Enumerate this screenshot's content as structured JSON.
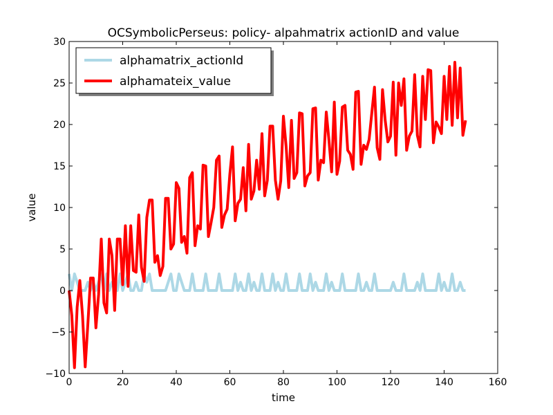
{
  "chart_data": {
    "type": "line",
    "title": "OCSymbolicPerseus: policy- alpahmatrix actionID and value",
    "xlabel": "time",
    "ylabel": "value",
    "xlim": [
      0,
      160
    ],
    "ylim": [
      -10,
      30
    ],
    "xticks": [
      0,
      20,
      40,
      60,
      80,
      100,
      120,
      140,
      160
    ],
    "yticks": [
      -10,
      -5,
      0,
      5,
      10,
      15,
      20,
      25,
      30
    ],
    "xtick_labels": [
      "0",
      "20",
      "40",
      "60",
      "80",
      "100",
      "120",
      "140",
      "160"
    ],
    "ytick_labels": [
      "−10",
      "−5",
      "0",
      "5",
      "10",
      "15",
      "20",
      "25",
      "30"
    ],
    "grid": false,
    "legend_position": "top-left",
    "series": [
      {
        "name": "alphamatrix_actionId",
        "color": "#add8e6",
        "x": [
          0,
          1,
          2,
          3,
          4,
          5,
          6,
          7,
          8,
          9,
          10,
          11,
          12,
          13,
          14,
          15,
          16,
          17,
          18,
          19,
          20,
          21,
          22,
          23,
          24,
          25,
          26,
          27,
          28,
          29,
          30,
          31,
          32,
          33,
          34,
          35,
          36,
          37,
          38,
          39,
          40,
          41,
          42,
          43,
          44,
          45,
          46,
          47,
          48,
          49,
          50,
          51,
          52,
          53,
          54,
          55,
          56,
          57,
          58,
          59,
          60,
          61,
          62,
          63,
          64,
          65,
          66,
          67,
          68,
          69,
          70,
          71,
          72,
          73,
          74,
          75,
          76,
          77,
          78,
          79,
          80,
          81,
          82,
          83,
          84,
          85,
          86,
          87,
          88,
          89,
          90,
          91,
          92,
          93,
          94,
          95,
          96,
          97,
          98,
          99,
          100,
          101,
          102,
          103,
          104,
          105,
          106,
          107,
          108,
          109,
          110,
          111,
          112,
          113,
          114,
          115,
          116,
          117,
          118,
          119,
          120,
          121,
          122,
          123,
          124,
          125,
          126,
          127,
          128,
          129,
          130,
          131,
          132,
          133,
          134,
          135,
          136,
          137,
          138,
          139,
          140,
          141,
          142,
          143,
          144,
          145,
          146,
          147,
          148
        ],
        "values": [
          2,
          0,
          2,
          1,
          0,
          0,
          0,
          1,
          0,
          1,
          0,
          1,
          2,
          0,
          2,
          0,
          1,
          0,
          0,
          2,
          0,
          1,
          2,
          0,
          0,
          1,
          0,
          0,
          2,
          1,
          2,
          0,
          0,
          0,
          0,
          0,
          0,
          1,
          2,
          0,
          0,
          2,
          1,
          0,
          0,
          0,
          2,
          0,
          0,
          0,
          0,
          2,
          0,
          0,
          0,
          0,
          2,
          0,
          0,
          0,
          0,
          0,
          2,
          0,
          1,
          0,
          0,
          2,
          0,
          1,
          0,
          0,
          2,
          0,
          0,
          0,
          2,
          0,
          1,
          0,
          0,
          2,
          0,
          0,
          0,
          0,
          2,
          0,
          0,
          0,
          2,
          0,
          1,
          0,
          0,
          0,
          2,
          0,
          1,
          0,
          0,
          0,
          2,
          0,
          0,
          0,
          0,
          0,
          2,
          0,
          0,
          1,
          0,
          0,
          2,
          0,
          0,
          0,
          0,
          0,
          0,
          1,
          0,
          0,
          0,
          2,
          0,
          0,
          0,
          0,
          1,
          0,
          2,
          0,
          0,
          0,
          0,
          0,
          2,
          0,
          1,
          0,
          0,
          2,
          0,
          0,
          1,
          0,
          0
        ]
      },
      {
        "name": "alphamateix_value",
        "color": "#ff0000",
        "x": [
          0,
          1,
          2,
          3,
          4,
          5,
          6,
          7,
          8,
          9,
          10,
          11,
          12,
          13,
          14,
          15,
          16,
          17,
          18,
          19,
          20,
          21,
          22,
          23,
          24,
          25,
          26,
          27,
          28,
          29,
          30,
          31,
          32,
          33,
          34,
          35,
          36,
          37,
          38,
          39,
          40,
          41,
          42,
          43,
          44,
          45,
          46,
          47,
          48,
          49,
          50,
          51,
          52,
          53,
          54,
          55,
          56,
          57,
          58,
          59,
          60,
          61,
          62,
          63,
          64,
          65,
          66,
          67,
          68,
          69,
          70,
          71,
          72,
          73,
          74,
          75,
          76,
          77,
          78,
          79,
          80,
          81,
          82,
          83,
          84,
          85,
          86,
          87,
          88,
          89,
          90,
          91,
          92,
          93,
          94,
          95,
          96,
          97,
          98,
          99,
          100,
          101,
          102,
          103,
          104,
          105,
          106,
          107,
          108,
          109,
          110,
          111,
          112,
          113,
          114,
          115,
          116,
          117,
          118,
          119,
          120,
          121,
          122,
          123,
          124,
          125,
          126,
          127,
          128,
          129,
          130,
          131,
          132,
          133,
          134,
          135,
          136,
          137,
          138,
          139,
          140,
          141,
          142,
          143,
          144,
          145,
          146,
          147,
          148
        ],
        "values": [
          0,
          -3,
          -9.3,
          -2,
          1.2,
          -3,
          -9.2,
          -4,
          1.5,
          1.5,
          -4.5,
          -0.5,
          6.2,
          -1.5,
          -2.7,
          6.2,
          4.2,
          -2.4,
          6.2,
          6.2,
          0.7,
          7.8,
          0.5,
          7.8,
          2.4,
          2.2,
          9.1,
          2.8,
          1.1,
          8.8,
          10.9,
          10.9,
          3.4,
          4.2,
          1.8,
          2.9,
          11.1,
          11.1,
          5,
          5.6,
          13,
          12.3,
          5.8,
          6.5,
          4.5,
          13.6,
          14.2,
          5.4,
          7.8,
          7.4,
          15.1,
          15,
          6.5,
          8.2,
          10,
          15.7,
          16.2,
          7.6,
          9.1,
          9.8,
          14,
          17.3,
          8.4,
          10.5,
          11,
          14.8,
          9.6,
          17.6,
          11,
          12,
          15.7,
          12.2,
          18.9,
          11.4,
          13.3,
          19.8,
          19.8,
          13.3,
          11,
          13.2,
          21,
          17.4,
          12.4,
          20.5,
          13.5,
          14.2,
          21.4,
          21.3,
          12.6,
          13.8,
          14.2,
          21.9,
          22,
          13.3,
          15.7,
          15.4,
          21.5,
          18.1,
          14.3,
          22.7,
          14,
          15.6,
          22.1,
          22.3,
          16.9,
          16.4,
          14.6,
          23.9,
          24,
          15.2,
          17.5,
          17,
          18.2,
          21.4,
          24.5,
          17.2,
          15.8,
          24.2,
          20.5,
          17.9,
          18.6,
          25.1,
          16.3,
          25,
          22.3,
          25.5,
          16.9,
          18.6,
          19.2,
          26,
          18.7,
          17.3,
          25.8,
          20.6,
          26.6,
          26.5,
          17.8,
          20.3,
          19.7,
          18.9,
          25.8,
          20.6,
          27,
          19.9,
          27.5,
          20.8,
          26.8,
          18.7,
          20.5
        ]
      }
    ]
  }
}
